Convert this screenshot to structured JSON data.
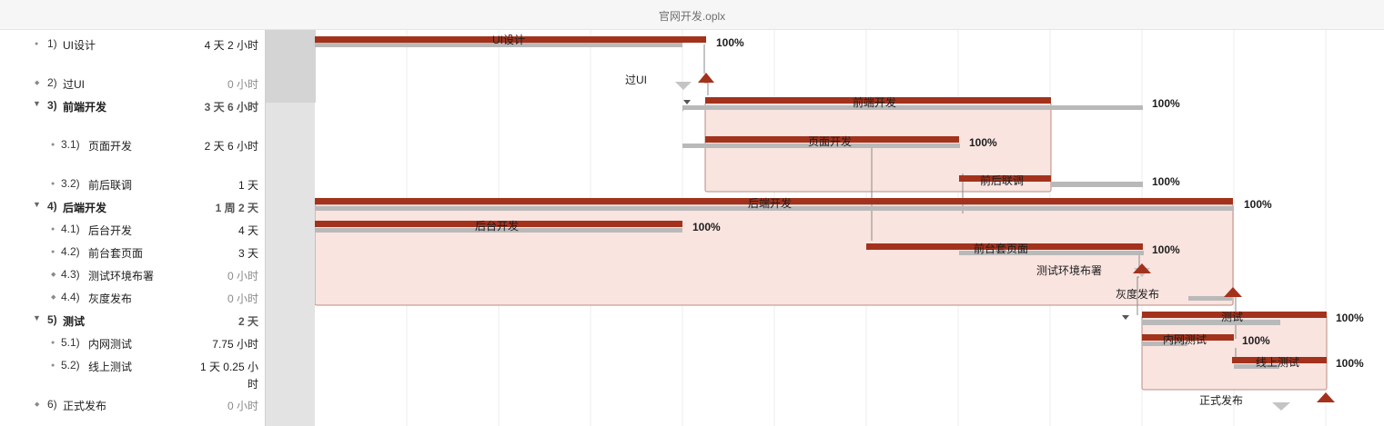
{
  "window": {
    "title": "官网开发.oplx"
  },
  "colors": {
    "bar": "#a3321c",
    "baseline": "#b9b9b9",
    "group_fill": "#f9e4df",
    "group_border": "#b98d85"
  },
  "tasks": [
    {
      "num": "1)",
      "name": "UI设计",
      "duration": "4 天 2 小时",
      "type": "task",
      "pct": "100%"
    },
    {
      "num": "2)",
      "name": "过UI",
      "duration": "0 小时",
      "type": "milestone"
    },
    {
      "num": "3)",
      "name": "前端开发",
      "duration": "3 天 6 小时",
      "type": "group",
      "pct": "100%"
    },
    {
      "num": "3.1)",
      "name": "页面开发",
      "duration": "2 天 6 小时",
      "type": "task",
      "pct": "100%"
    },
    {
      "num": "3.2)",
      "name": "前后联调",
      "duration": "1 天",
      "type": "task",
      "pct": "100%"
    },
    {
      "num": "4)",
      "name": "后端开发",
      "duration": "1 周 2 天",
      "type": "group",
      "pct": "100%"
    },
    {
      "num": "4.1)",
      "name": "后台开发",
      "duration": "4 天",
      "type": "task",
      "pct": "100%"
    },
    {
      "num": "4.2)",
      "name": "前台套页面",
      "duration": "3 天",
      "type": "task",
      "pct": "100%"
    },
    {
      "num": "4.3)",
      "name": "测试环境布署",
      "duration": "0 小时",
      "type": "milestone"
    },
    {
      "num": "4.4)",
      "name": "灰度发布",
      "duration": "0 小时",
      "type": "milestone"
    },
    {
      "num": "5)",
      "name": "测试",
      "duration": "2 天",
      "type": "group",
      "pct": "100%"
    },
    {
      "num": "5.1)",
      "name": "内网测试",
      "duration": "7.75 小时",
      "type": "task",
      "pct": "100%"
    },
    {
      "num": "5.2)",
      "name": "线上测试",
      "duration": "1 天 0.25 小时",
      "type": "task",
      "pct": "100%"
    },
    {
      "num": "6)",
      "name": "正式发布",
      "duration": "0 小时",
      "type": "milestone"
    }
  ]
}
